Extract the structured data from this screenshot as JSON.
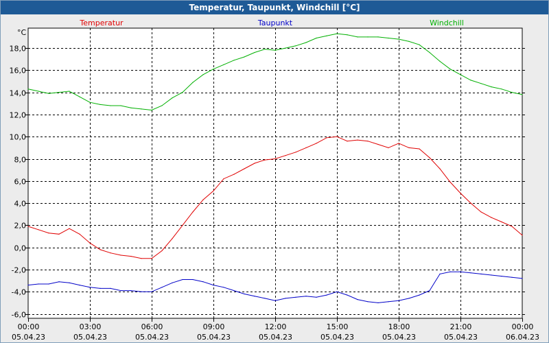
{
  "window": {
    "title": "Temperatur, Taupunkt, Windchill [°C]"
  },
  "colors": {
    "temperatur": "#e00000",
    "taupunkt": "#0000c8",
    "windchill": "#00b000",
    "titlebar": "#1e5a96",
    "plot_bg": "#ffffff",
    "grid": "#000000"
  },
  "chart_data": {
    "type": "line",
    "title": "Temperatur, Taupunkt, Windchill [°C]",
    "ylabel": "°C",
    "xlabel": "",
    "ylim": [
      -6.4,
      19.8
    ],
    "xlim": [
      0,
      24
    ],
    "grid": true,
    "legend_position": "top",
    "yticks": [
      -6,
      -4,
      -2,
      0,
      2,
      4,
      6,
      8,
      10,
      12,
      14,
      16,
      18
    ],
    "ytick_labels": [
      "-6,0",
      "-4,0",
      "-2,0",
      "0,0",
      "2,0",
      "4,0",
      "6,0",
      "8,0",
      "10,0",
      "12,0",
      "14,0",
      "16,0",
      "18,0"
    ],
    "xticks": [
      {
        "h": 0,
        "time": "00:00",
        "date": "05.04.23"
      },
      {
        "h": 3,
        "time": "03:00",
        "date": "05.04.23"
      },
      {
        "h": 6,
        "time": "06:00",
        "date": "05.04.23"
      },
      {
        "h": 9,
        "time": "09:00",
        "date": "05.04.23"
      },
      {
        "h": 12,
        "time": "12:00",
        "date": "05.04.23"
      },
      {
        "h": 15,
        "time": "15:00",
        "date": "05.04.23"
      },
      {
        "h": 18,
        "time": "18:00",
        "date": "05.04.23"
      },
      {
        "h": 21,
        "time": "21:00",
        "date": "05.04.23"
      },
      {
        "h": 24,
        "time": "00:00",
        "date": "06.04.23"
      }
    ],
    "series": [
      {
        "name": "Temperatur",
        "color": "#e00000",
        "legend_align": "left",
        "x": [
          0,
          0.5,
          1,
          1.5,
          2,
          2.5,
          3,
          3.5,
          4,
          4.5,
          5,
          5.5,
          6,
          6.5,
          7,
          7.5,
          8,
          8.5,
          9,
          9.5,
          10,
          10.5,
          11,
          11.5,
          12,
          12.5,
          13,
          13.5,
          14,
          14.5,
          15,
          15.5,
          16,
          16.5,
          17,
          17.5,
          18,
          18.5,
          19,
          19.5,
          20,
          20.5,
          21,
          21.5,
          22,
          22.5,
          23,
          23.5,
          24
        ],
        "values": [
          1.9,
          1.6,
          1.3,
          1.2,
          1.7,
          1.2,
          0.4,
          -0.2,
          -0.5,
          -0.7,
          -0.8,
          -1.0,
          -1.0,
          -0.3,
          0.8,
          2.0,
          3.2,
          4.3,
          5.1,
          6.2,
          6.6,
          7.1,
          7.6,
          7.9,
          8.0,
          8.3,
          8.6,
          9.0,
          9.4,
          9.9,
          10.0,
          9.6,
          9.7,
          9.6,
          9.3,
          9.0,
          9.4,
          9.0,
          8.9,
          8.1,
          7.1,
          5.9,
          4.9,
          4.0,
          3.2,
          2.7,
          2.3,
          1.9,
          1.1
        ]
      },
      {
        "name": "Taupunkt",
        "color": "#0000c8",
        "legend_align": "center",
        "x": [
          0,
          0.5,
          1,
          1.5,
          2,
          2.5,
          3,
          3.5,
          4,
          4.5,
          5,
          5.5,
          6,
          6.5,
          7,
          7.5,
          8,
          8.5,
          9,
          9.5,
          10,
          10.5,
          11,
          11.5,
          12,
          12.5,
          13,
          13.5,
          14,
          14.5,
          15,
          15.5,
          16,
          16.5,
          17,
          17.5,
          18,
          18.5,
          19,
          19.5,
          20,
          20.5,
          21,
          21.5,
          22,
          22.5,
          23,
          23.5,
          24
        ],
        "values": [
          -3.4,
          -3.3,
          -3.3,
          -3.1,
          -3.2,
          -3.4,
          -3.6,
          -3.7,
          -3.7,
          -3.9,
          -3.9,
          -4.0,
          -4.0,
          -3.6,
          -3.2,
          -2.9,
          -2.9,
          -3.1,
          -3.4,
          -3.6,
          -3.9,
          -4.2,
          -4.4,
          -4.6,
          -4.8,
          -4.6,
          -4.5,
          -4.4,
          -4.5,
          -4.3,
          -4.0,
          -4.3,
          -4.7,
          -4.9,
          -5.0,
          -4.9,
          -4.8,
          -4.6,
          -4.3,
          -3.9,
          -2.4,
          -2.2,
          -2.2,
          -2.3,
          -2.4,
          -2.5,
          -2.6,
          -2.7,
          -2.8
        ]
      },
      {
        "name": "Windchill",
        "color": "#00b000",
        "legend_align": "right",
        "x": [
          0,
          0.5,
          1,
          1.5,
          2,
          2.5,
          3,
          3.5,
          4,
          4.5,
          5,
          5.5,
          6,
          6.5,
          7,
          7.5,
          8,
          8.5,
          9,
          9.5,
          10,
          10.5,
          11,
          11.5,
          12,
          12.5,
          13,
          13.5,
          14,
          14.5,
          15,
          15.5,
          16,
          16.5,
          17,
          17.5,
          18,
          18.5,
          19,
          19.5,
          20,
          20.5,
          21,
          21.5,
          22,
          22.5,
          23,
          23.5,
          24
        ],
        "values": [
          14.3,
          14.1,
          13.9,
          14.0,
          14.1,
          13.6,
          13.1,
          12.9,
          12.8,
          12.8,
          12.6,
          12.5,
          12.4,
          12.8,
          13.5,
          14.0,
          14.9,
          15.6,
          16.1,
          16.5,
          16.9,
          17.2,
          17.6,
          17.9,
          17.8,
          18.0,
          18.2,
          18.5,
          18.9,
          19.1,
          19.3,
          19.2,
          19.0,
          19.0,
          19.0,
          18.9,
          18.8,
          18.6,
          18.3,
          17.6,
          16.8,
          16.1,
          15.6,
          15.1,
          14.8,
          14.5,
          14.3,
          14.0,
          13.8
        ]
      }
    ]
  }
}
